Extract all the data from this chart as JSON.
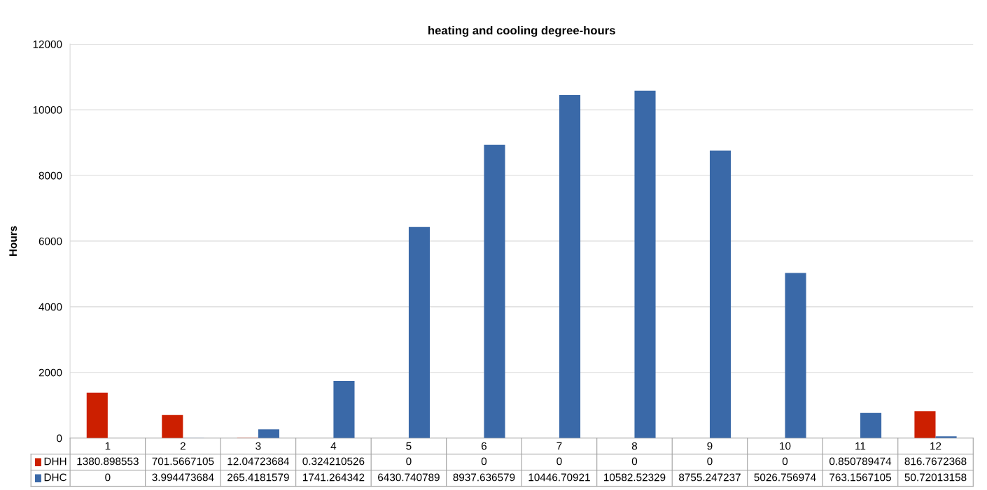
{
  "chart_data": {
    "type": "bar",
    "title": "heating and cooling degree-hours",
    "ylabel": "Hours",
    "categories": [
      "1",
      "2",
      "3",
      "4",
      "5",
      "6",
      "7",
      "8",
      "9",
      "10",
      "11",
      "12"
    ],
    "series": [
      {
        "name": "DHH",
        "color": "#cc1f00",
        "values": [
          1380.898553,
          701.5667105,
          12.04723684,
          0.324210526,
          0,
          0,
          0,
          0,
          0,
          0,
          0.850789474,
          816.7672368
        ]
      },
      {
        "name": "DHC",
        "color": "#3a69a8",
        "values": [
          0,
          3.994473684,
          265.4181579,
          1741.264342,
          6430.740789,
          8937.636579,
          10446.70921,
          10582.52329,
          8755.247237,
          5026.756974,
          763.1567105,
          50.72013158
        ]
      }
    ],
    "ylim": [
      0,
      12000
    ],
    "yticks": [
      0,
      2000,
      4000,
      6000,
      8000,
      10000,
      12000
    ],
    "grid": "y",
    "data_labels": true,
    "legend": "bottom"
  }
}
